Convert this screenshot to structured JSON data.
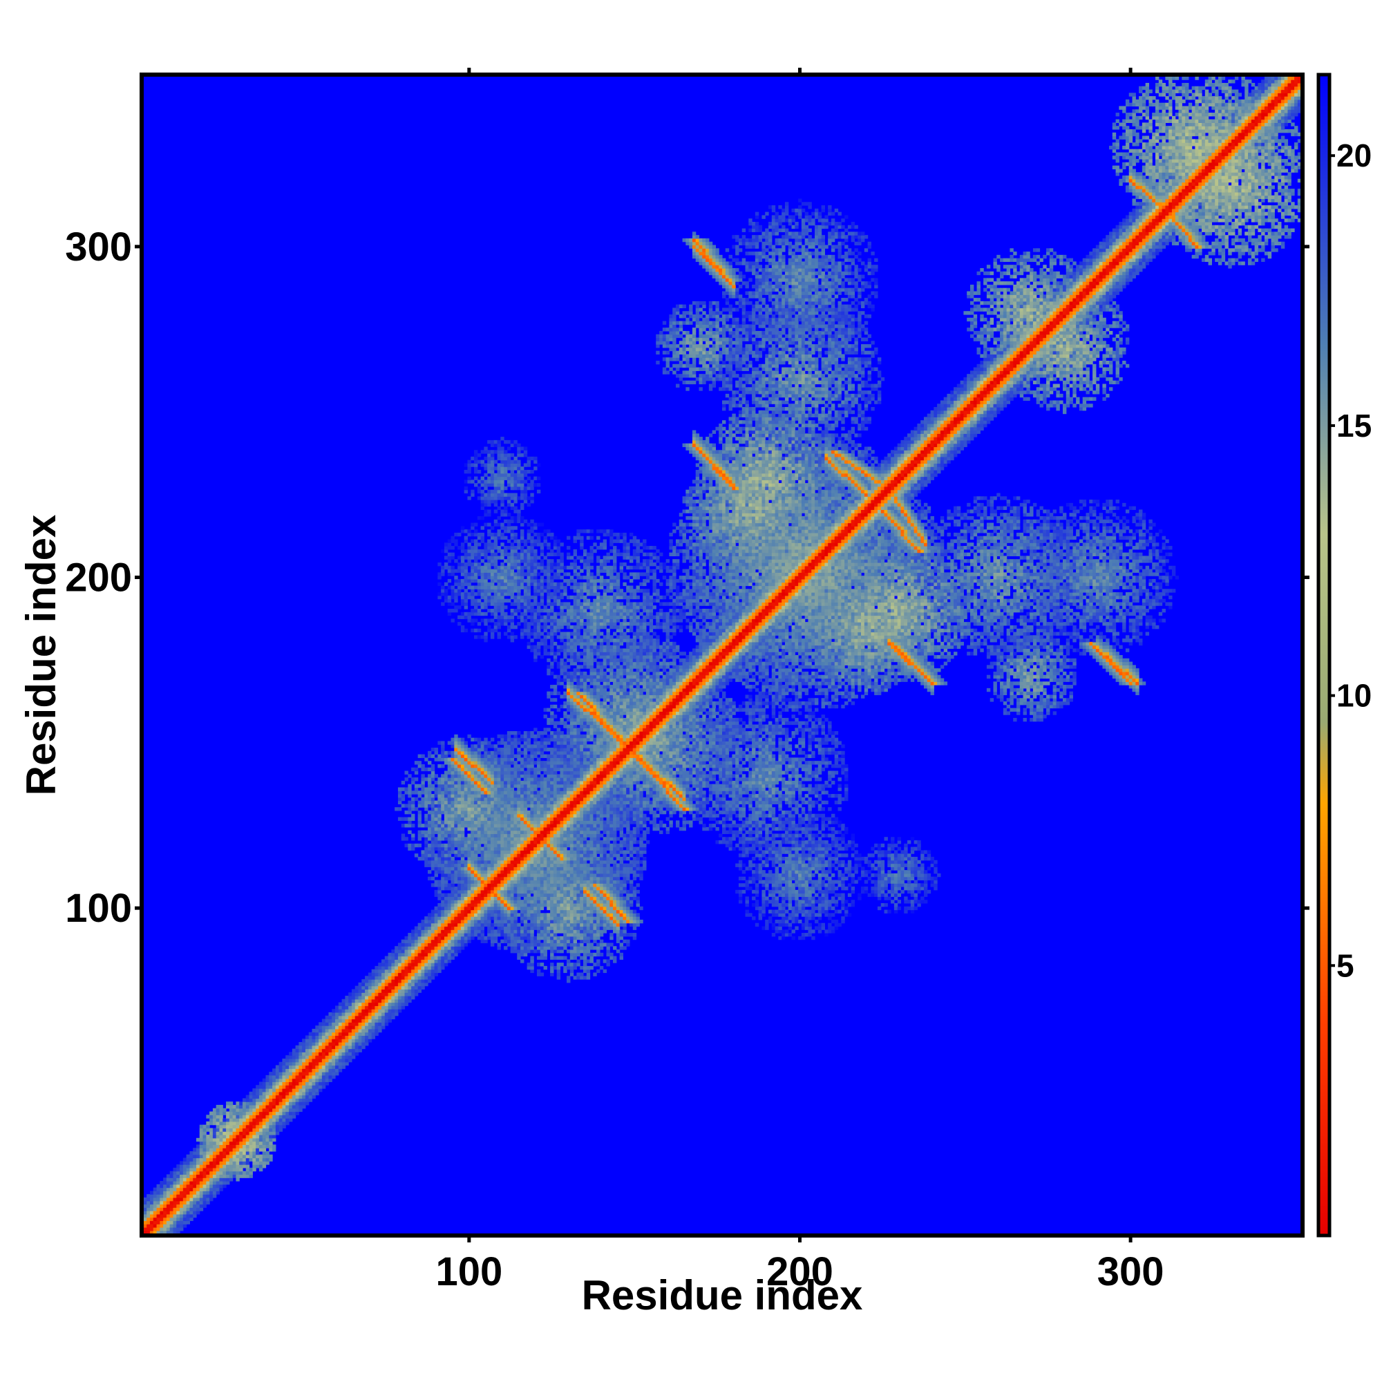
{
  "chart_data": {
    "type": "heatmap",
    "xlabel": "Residue index",
    "ylabel": "Residue index",
    "xlim": [
      1,
      352
    ],
    "ylim": [
      1,
      352
    ],
    "x_ticks": [
      100,
      200,
      300
    ],
    "y_ticks": [
      100,
      200,
      300
    ],
    "colorbar": {
      "range": [
        0,
        21.5
      ],
      "ticks": [
        5,
        10,
        15,
        20
      ],
      "stops": [
        {
          "value": 0,
          "color": "#e60000"
        },
        {
          "value": 4,
          "color": "#ff4000"
        },
        {
          "value": 8,
          "color": "#ffa500"
        },
        {
          "value": 9.5,
          "color": "#9aaa72"
        },
        {
          "value": 13,
          "color": "#b9c48a"
        },
        {
          "value": 16.5,
          "color": "#4f7fb3"
        },
        {
          "value": 21.5,
          "color": "#0000ff"
        }
      ]
    },
    "background_value": 21.5,
    "diagonal": {
      "value": 0,
      "band_width": 5
    },
    "contact_features": [
      {
        "kind": "blob",
        "center": [
          30,
          30
        ],
        "radius": 12,
        "value": 13
      },
      {
        "kind": "blob",
        "center": [
          120,
          120
        ],
        "radius": 34,
        "value": 15.5
      },
      {
        "kind": "blob",
        "center": [
          150,
          155
        ],
        "radius": 28,
        "value": 15
      },
      {
        "kind": "blob",
        "center": [
          100,
          130
        ],
        "radius": 22,
        "value": 15
      },
      {
        "kind": "blob",
        "center": [
          200,
          205
        ],
        "radius": 40,
        "value": 15
      },
      {
        "kind": "blob",
        "center": [
          190,
          230
        ],
        "radius": 22,
        "value": 14
      },
      {
        "kind": "blob",
        "center": [
          220,
          185
        ],
        "radius": 20,
        "value": 14
      },
      {
        "kind": "blob",
        "center": [
          260,
          200
        ],
        "radius": 25,
        "value": 15.5
      },
      {
        "kind": "blob",
        "center": [
          190,
          140
        ],
        "radius": 25,
        "value": 16
      },
      {
        "kind": "blob",
        "center": [
          200,
          290
        ],
        "radius": 24,
        "value": 16
      },
      {
        "kind": "blob",
        "center": [
          170,
          270
        ],
        "radius": 14,
        "value": 15
      },
      {
        "kind": "blob",
        "center": [
          270,
          280
        ],
        "radius": 20,
        "value": 14
      },
      {
        "kind": "blob",
        "center": [
          320,
          330
        ],
        "radius": 26,
        "value": 13.5
      },
      {
        "kind": "blob",
        "center": [
          110,
          200
        ],
        "radius": 20,
        "value": 16.5
      },
      {
        "kind": "blob",
        "center": [
          230,
          110
        ],
        "radius": 12,
        "value": 16.5
      },
      {
        "kind": "strand",
        "from": [
          133,
          165
        ],
        "to": [
          165,
          130
        ],
        "value": 6
      },
      {
        "kind": "strand",
        "from": [
          95,
          145
        ],
        "to": [
          105,
          135
        ],
        "value": 6
      },
      {
        "kind": "strand",
        "from": [
          115,
          128
        ],
        "to": [
          128,
          115
        ],
        "value": 6
      },
      {
        "kind": "strand",
        "from": [
          100,
          112
        ],
        "to": [
          112,
          100
        ],
        "value": 6
      },
      {
        "kind": "strand",
        "from": [
          138,
          107
        ],
        "to": [
          148,
          96
        ],
        "value": 6
      },
      {
        "kind": "strand",
        "from": [
          168,
          302
        ],
        "to": [
          178,
          290
        ],
        "value": 6
      },
      {
        "kind": "strand",
        "from": [
          168,
          240
        ],
        "to": [
          180,
          227
        ],
        "value": 6
      },
      {
        "kind": "strand",
        "from": [
          210,
          238
        ],
        "to": [
          225,
          228
        ],
        "value": 6
      },
      {
        "kind": "strand",
        "from": [
          228,
          180
        ],
        "to": [
          240,
          168
        ],
        "value": 6
      },
      {
        "kind": "strand",
        "from": [
          288,
          180
        ],
        "to": [
          300,
          168
        ],
        "value": 6
      },
      {
        "kind": "strand",
        "from": [
          225,
          220
        ],
        "to": [
          236,
          208
        ],
        "value": 6
      },
      {
        "kind": "strand",
        "from": [
          310,
          312
        ],
        "to": [
          320,
          300
        ],
        "value": 6
      }
    ]
  }
}
